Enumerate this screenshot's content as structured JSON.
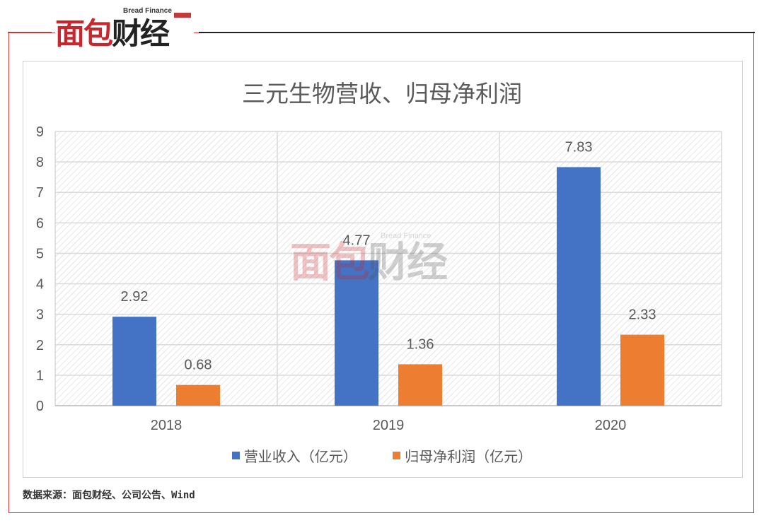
{
  "brand": {
    "logo_text_red": "面包",
    "logo_text_black": "财经",
    "logo_subtitle": "Bread Finance"
  },
  "colors": {
    "frame_red": "#c23a3a",
    "revenue_bar": "#4472c4",
    "profit_bar": "#ed7d31",
    "gridline": "#d9d9d9",
    "text": "#595959"
  },
  "chart_data": {
    "type": "bar",
    "title": "三元生物营收、归母净利润",
    "categories": [
      "2018",
      "2019",
      "2020"
    ],
    "series": [
      {
        "name": "营业收入（亿元）",
        "values": [
          2.92,
          4.77,
          7.83
        ],
        "labels": [
          "2.92",
          "4.77",
          "7.83"
        ],
        "color": "#4472c4"
      },
      {
        "name": "归母净利润（亿元）",
        "values": [
          0.68,
          1.36,
          2.33
        ],
        "labels": [
          "0.68",
          "1.36",
          "2.33"
        ],
        "color": "#ed7d31"
      }
    ],
    "yticks": [
      "0",
      "1",
      "2",
      "3",
      "4",
      "5",
      "6",
      "7",
      "8",
      "9"
    ],
    "ylim": [
      0,
      9
    ],
    "grid": true,
    "legend": "bottom"
  },
  "footer": {
    "source": "数据来源：面包财经、公司公告、Wind"
  }
}
